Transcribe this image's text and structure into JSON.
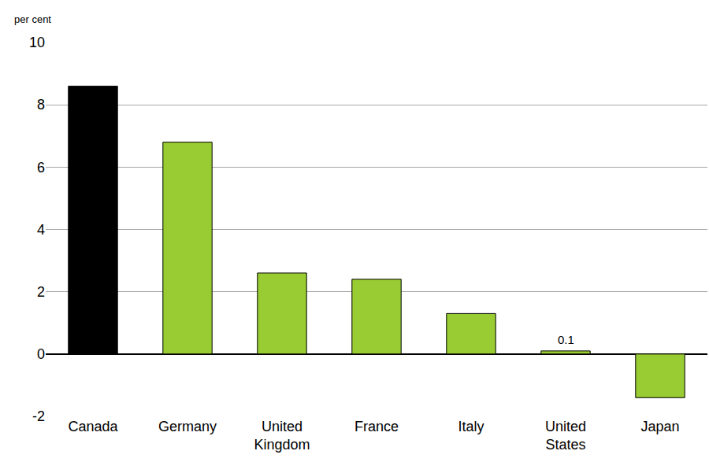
{
  "chart_data": {
    "type": "bar",
    "ylabel": "per cent",
    "categories": [
      "Canada",
      "Germany",
      "United Kingdom",
      "France",
      "Italy",
      "United States",
      "Japan"
    ],
    "values": [
      8.6,
      6.8,
      2.6,
      2.4,
      1.3,
      0.1,
      -1.4
    ],
    "colors": [
      "#000000",
      "#99cc33",
      "#99cc33",
      "#99cc33",
      "#99cc33",
      "#99cc33",
      "#99cc33"
    ],
    "ylim": [
      -2,
      10
    ],
    "yticks": [
      -2,
      0,
      2,
      4,
      6,
      8,
      10
    ],
    "grid": true,
    "annotations": [
      {
        "x": "United States",
        "y": 0.1,
        "text": "0.1"
      }
    ]
  }
}
